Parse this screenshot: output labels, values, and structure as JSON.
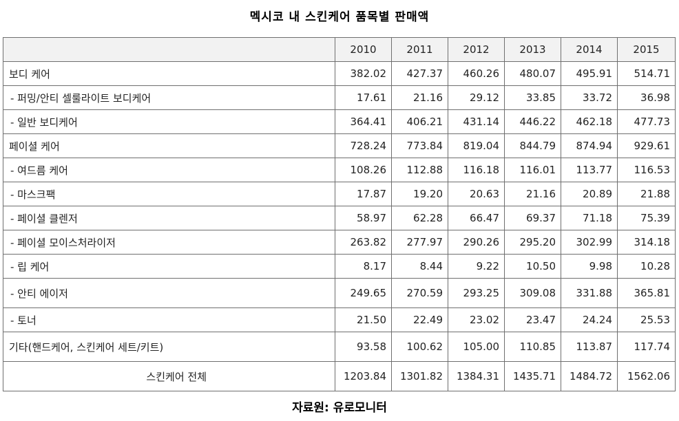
{
  "title": "멕시코 내 스킨케어 품목별 판매액",
  "source": "자료원: 유로모니터",
  "table": {
    "years": [
      "2010",
      "2011",
      "2012",
      "2013",
      "2014",
      "2015"
    ],
    "rows": [
      {
        "label": "보디 케어",
        "values": [
          "382.02",
          "427.37",
          "460.26",
          "480.07",
          "495.91",
          "514.71"
        ]
      },
      {
        "label": "- 퍼밍/안티 셀룰라이트 보디케어",
        "values": [
          "17.61",
          "21.16",
          "29.12",
          "33.85",
          "33.72",
          "36.98"
        ]
      },
      {
        "label": "- 일반 보디케어",
        "values": [
          "364.41",
          "406.21",
          "431.14",
          "446.22",
          "462.18",
          "477.73"
        ]
      },
      {
        "label": "페이셜 케어",
        "values": [
          "728.24",
          "773.84",
          "819.04",
          "844.79",
          "874.94",
          "929.61"
        ]
      },
      {
        "label": "- 여드름 케어",
        "values": [
          "108.26",
          "112.88",
          "116.18",
          "116.01",
          "113.77",
          "116.53"
        ]
      },
      {
        "label": "- 마스크팩",
        "values": [
          "17.87",
          "19.20",
          "20.63",
          "21.16",
          "20.89",
          "21.88"
        ]
      },
      {
        "label": "- 페이셜 클렌저",
        "values": [
          "58.97",
          "62.28",
          "66.47",
          "69.37",
          "71.18",
          "75.39"
        ]
      },
      {
        "label": "- 페이셜 모이스처라이저",
        "values": [
          "263.82",
          "277.97",
          "290.26",
          "295.20",
          "302.99",
          "314.18"
        ]
      },
      {
        "label": "- 립 케어",
        "values": [
          "8.17",
          "8.44",
          "9.22",
          "10.50",
          "9.98",
          "10.28"
        ]
      },
      {
        "label": "- 안티 에이저",
        "values": [
          "249.65",
          "270.59",
          "293.25",
          "309.08",
          "331.88",
          "365.81"
        ]
      },
      {
        "label": "- 토너",
        "values": [
          "21.50",
          "22.49",
          "23.02",
          "23.47",
          "24.24",
          "25.53"
        ]
      },
      {
        "label": "기타(핸드케어, 스킨케어 세트/키트)",
        "values": [
          "93.58",
          "100.62",
          "105.00",
          "110.85",
          "113.87",
          "117.74"
        ]
      },
      {
        "label": "스킨케어 전체",
        "values": [
          "1203.84",
          "1301.82",
          "1384.31",
          "1435.71",
          "1484.72",
          "1562.06"
        ]
      }
    ]
  }
}
